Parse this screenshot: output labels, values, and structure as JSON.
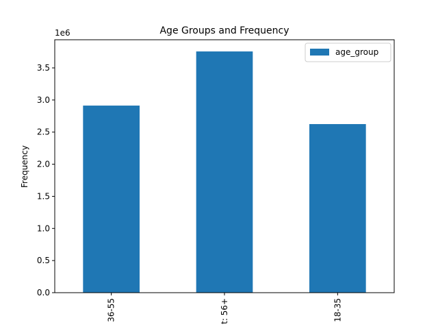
{
  "chart_data": {
    "type": "bar",
    "title": "Age Groups and Frequency",
    "ylabel": "Frequency",
    "y_offset_label": "1e6",
    "categories": [
      "36-55",
      "t: 56+",
      "18-35"
    ],
    "series": [
      {
        "name": "age_group",
        "color": "#1f77b4",
        "values": [
          2913000,
          3756000,
          2625000
        ]
      }
    ],
    "ylim": [
      0,
      3938000
    ],
    "yticks": [
      {
        "value": 0,
        "label": "0.0"
      },
      {
        "value": 500000,
        "label": "0.5"
      },
      {
        "value": 1000000,
        "label": "1.0"
      },
      {
        "value": 1500000,
        "label": "1.5"
      },
      {
        "value": 2000000,
        "label": "2.0"
      },
      {
        "value": 2500000,
        "label": "2.5"
      },
      {
        "value": 3000000,
        "label": "3.0"
      },
      {
        "value": 3500000,
        "label": "3.5"
      }
    ],
    "legend": "upper right",
    "grid": false
  }
}
